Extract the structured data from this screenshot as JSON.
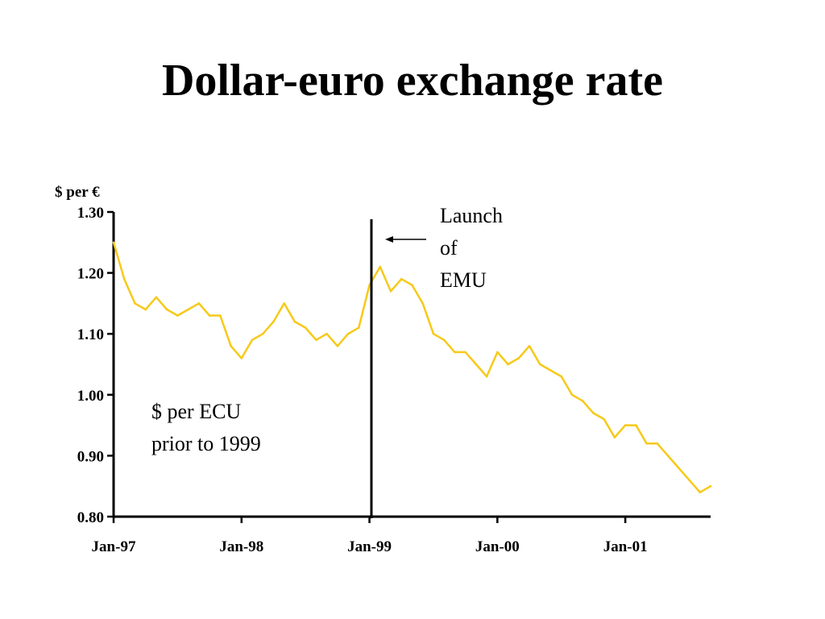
{
  "slide": {
    "title": "Dollar-euro exchange rate"
  },
  "chart_data": {
    "type": "line",
    "title": "Dollar-euro exchange rate",
    "ylabel": "$ per €",
    "xlabel": "",
    "ylim": [
      0.8,
      1.3
    ],
    "xlim": [
      "1997-01",
      "2001-09"
    ],
    "yticks": [
      "0.80",
      "0.90",
      "1.00",
      "1.10",
      "1.20",
      "1.30"
    ],
    "xticks": [
      "Jan-97",
      "Jan-98",
      "Jan-99",
      "Jan-00",
      "Jan-01"
    ],
    "grid": false,
    "line_color": "#F7C919",
    "series": [
      {
        "x": [
          "1997-01",
          "1997-02",
          "1997-03",
          "1997-04",
          "1997-05",
          "1997-06",
          "1997-07",
          "1997-08",
          "1997-09",
          "1997-10",
          "1997-11",
          "1997-12",
          "1998-01",
          "1998-02",
          "1998-03",
          "1998-04",
          "1998-05",
          "1998-06",
          "1998-07",
          "1998-08",
          "1998-09",
          "1998-10",
          "1998-11",
          "1998-12",
          "1999-01",
          "1999-02",
          "1999-03",
          "1999-04",
          "1999-05",
          "1999-06",
          "1999-07",
          "1999-08",
          "1999-09",
          "1999-10",
          "1999-11",
          "1999-12",
          "2000-01",
          "2000-02",
          "2000-03",
          "2000-04",
          "2000-05",
          "2000-06",
          "2000-07",
          "2000-08",
          "2000-09",
          "2000-10",
          "2000-11",
          "2000-12",
          "2001-01",
          "2001-02",
          "2001-03",
          "2001-04",
          "2001-05",
          "2001-06",
          "2001-07",
          "2001-08",
          "2001-09"
        ],
        "values": [
          1.25,
          1.19,
          1.15,
          1.14,
          1.16,
          1.14,
          1.13,
          1.14,
          1.15,
          1.13,
          1.13,
          1.08,
          1.06,
          1.09,
          1.1,
          1.12,
          1.15,
          1.12,
          1.11,
          1.09,
          1.1,
          1.08,
          1.1,
          1.11,
          1.18,
          1.21,
          1.17,
          1.19,
          1.18,
          1.15,
          1.1,
          1.09,
          1.07,
          1.07,
          1.05,
          1.03,
          1.07,
          1.05,
          1.06,
          1.08,
          1.05,
          1.04,
          1.03,
          1.0,
          0.99,
          0.97,
          0.96,
          0.93,
          0.95,
          0.95,
          0.92,
          0.92,
          0.9,
          0.88,
          0.86,
          0.84,
          0.85
        ]
      }
    ],
    "annotations": {
      "launch": {
        "line1": "Launch",
        "line2": "of",
        "line3": "EMU"
      },
      "ecu": {
        "line1": "$ per ECU",
        "line2": "prior to 1999"
      }
    }
  }
}
